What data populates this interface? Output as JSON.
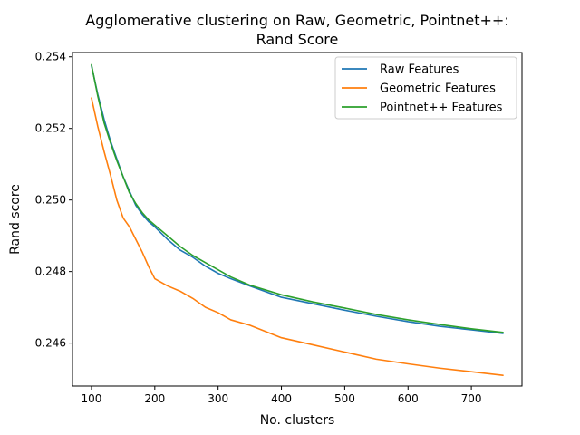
{
  "chart_data": {
    "type": "line",
    "title_line1": "Agglomerative clustering on Raw, Geometric, Pointnet++:",
    "title_line2": "Rand Score",
    "xlabel": "No. clusters",
    "ylabel": "Rand score",
    "xlim": [
      70,
      780
    ],
    "ylim": [
      0.2448,
      0.25412
    ],
    "xticks": [
      100,
      200,
      300,
      400,
      500,
      600,
      700
    ],
    "yticks": [
      0.246,
      0.248,
      0.25,
      0.252,
      0.254
    ],
    "ytick_labels": [
      "0.246",
      "0.248",
      "0.250",
      "0.252",
      "0.254"
    ],
    "legend_position": "top-right",
    "grid": false,
    "series": [
      {
        "name": "Raw Features",
        "color": "#1f77b4",
        "x": [
          100,
          110,
          120,
          130,
          140,
          150,
          160,
          170,
          180,
          190,
          200,
          220,
          240,
          260,
          280,
          300,
          320,
          350,
          400,
          450,
          500,
          550,
          600,
          650,
          700,
          750
        ],
        "y": [
          0.25375,
          0.25295,
          0.25225,
          0.25165,
          0.25115,
          0.25065,
          0.25025,
          0.24985,
          0.2496,
          0.2494,
          0.24925,
          0.2489,
          0.2486,
          0.2484,
          0.24815,
          0.24795,
          0.2478,
          0.2476,
          0.24728,
          0.2471,
          0.24692,
          0.24675,
          0.2466,
          0.24647,
          0.24637,
          0.24627
        ]
      },
      {
        "name": "Geometric Features",
        "color": "#ff7f0e",
        "x": [
          100,
          110,
          120,
          130,
          140,
          150,
          160,
          170,
          180,
          190,
          200,
          220,
          240,
          260,
          280,
          300,
          320,
          350,
          400,
          450,
          500,
          550,
          600,
          650,
          700,
          750
        ],
        "y": [
          0.25285,
          0.25205,
          0.25135,
          0.2507,
          0.25,
          0.2495,
          0.24925,
          0.2489,
          0.24855,
          0.24815,
          0.2478,
          0.2476,
          0.24745,
          0.24725,
          0.247,
          0.24685,
          0.24665,
          0.2465,
          0.24615,
          0.24595,
          0.24575,
          0.24555,
          0.24542,
          0.2453,
          0.2452,
          0.2451
        ]
      },
      {
        "name": "Pointnet++ Features",
        "color": "#2ca02c",
        "x": [
          100,
          110,
          120,
          130,
          140,
          150,
          160,
          170,
          180,
          190,
          200,
          220,
          240,
          260,
          280,
          300,
          320,
          350,
          400,
          450,
          500,
          550,
          600,
          650,
          700,
          750
        ],
        "y": [
          0.25378,
          0.2529,
          0.25215,
          0.2516,
          0.2511,
          0.25065,
          0.2502,
          0.2499,
          0.24965,
          0.24945,
          0.2493,
          0.249,
          0.2487,
          0.24845,
          0.24825,
          0.24805,
          0.24785,
          0.24762,
          0.24735,
          0.24715,
          0.24698,
          0.2468,
          0.24665,
          0.24652,
          0.2464,
          0.2463
        ]
      }
    ]
  }
}
